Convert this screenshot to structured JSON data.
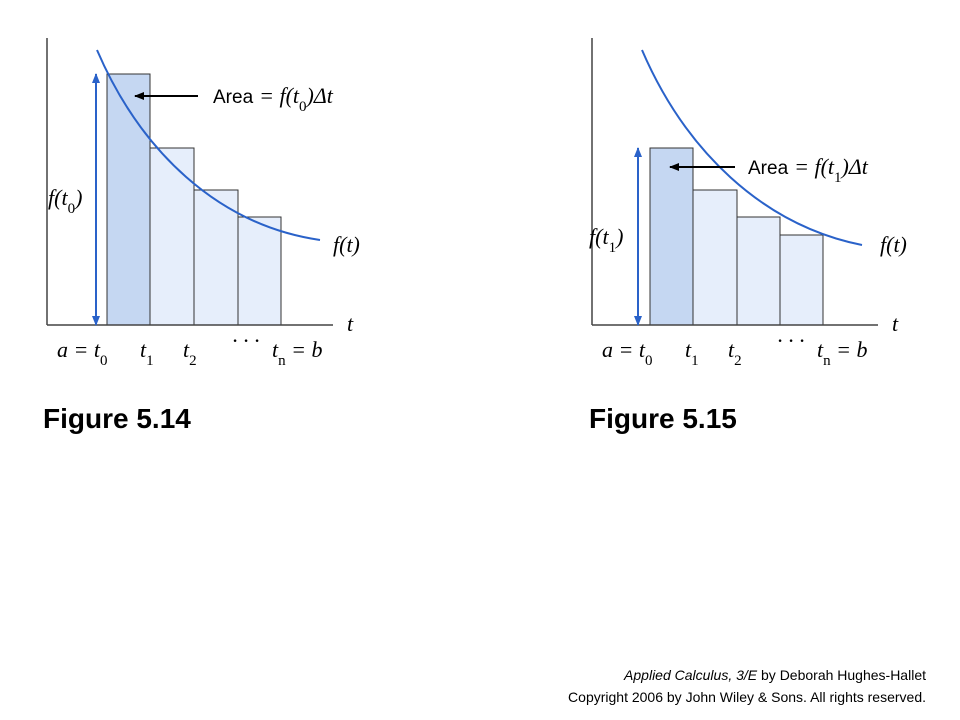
{
  "figures": [
    {
      "caption": "Figure 5.14",
      "area_word": "Area",
      "area_formula": [
        "= f(t",
        "0",
        ")Δt"
      ],
      "height_label": [
        "f(t",
        "0",
        ")"
      ],
      "curve_label": "f(t)",
      "axis_label": "t",
      "ticks": [
        [
          "a = t",
          "0"
        ],
        [
          "t",
          "1"
        ],
        [
          "t",
          "2"
        ],
        [
          "· · ·"
        ],
        [
          "t",
          "n",
          " = b"
        ]
      ]
    },
    {
      "caption": "Figure 5.15",
      "area_word": "Area",
      "area_formula": [
        "= f(t",
        "1",
        ")Δt"
      ],
      "height_label": [
        "f(t",
        "1",
        ")"
      ],
      "curve_label": "f(t)",
      "axis_label": "t",
      "ticks": [
        [
          "a = t",
          "0"
        ],
        [
          "t",
          "1"
        ],
        [
          "t",
          "2"
        ],
        [
          "· · ·"
        ],
        [
          "t",
          "n",
          " = b"
        ]
      ]
    }
  ],
  "footer": {
    "book": "Applied Calculus, 3/E",
    "author": " by Deborah Hughes-Hallet",
    "copyright": "Copyright 2006 by John Wiley & Sons.  All rights reserved."
  }
}
